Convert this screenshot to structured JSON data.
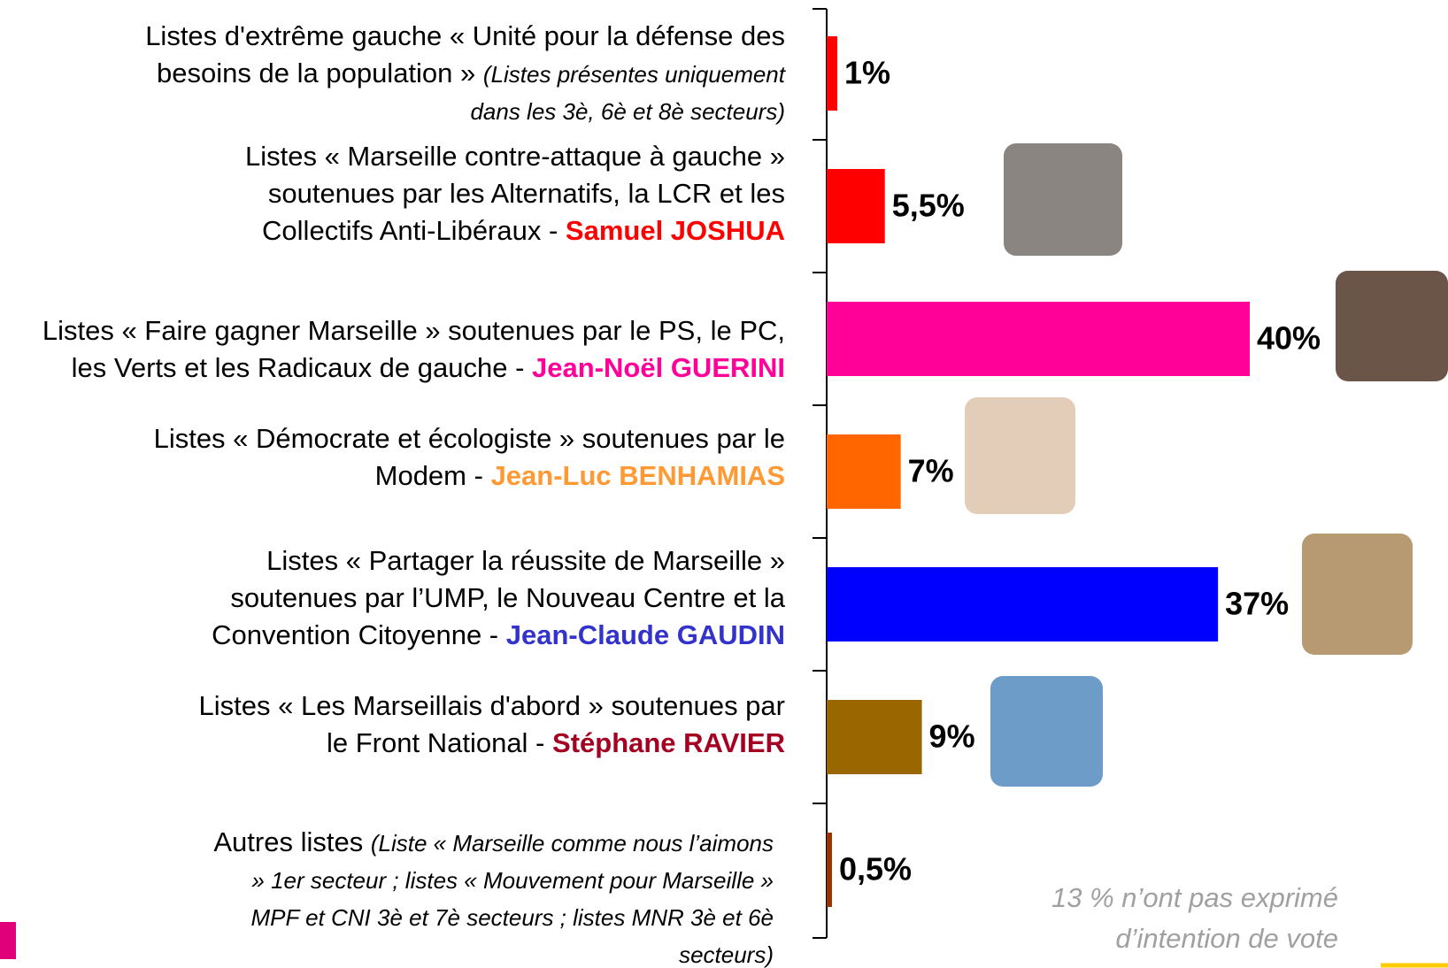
{
  "chart_data": {
    "type": "bar",
    "orientation": "horizontal",
    "categories": [
      "Listes d'extrême gauche « Unité pour la défense des besoins de la population »",
      "Listes « Marseille contre-attaque à gauche » soutenues par les Alternatifs, la LCR et les Collectifs Anti-Libéraux -",
      "Listes « Faire gagner Marseille » soutenues par le PS, le PC, les Verts et les Radicaux de gauche -",
      "Listes « Démocrate et écologiste » soutenues par le Modem -",
      "Listes « Partager la réussite de Marseille » soutenues par l’UMP, le Nouveau Centre et la Convention Citoyenne -",
      "Listes « Les Marseillais d'abord » soutenues par le Front National -",
      "Autres listes"
    ],
    "notes": [
      "(Listes présentes uniquement dans les 3è, 6è et 8è secteurs)",
      null,
      null,
      null,
      null,
      null,
      "(Liste « Marseille comme nous l’aimons » 1er secteur ; listes « Mouvement pour Marseille » MPF et CNI 3è et 7è secteurs ; listes MNR 3è et 6è secteurs)"
    ],
    "leaders": [
      null,
      "Samuel JOSHUA",
      "Jean-Noël GUERINI",
      "Jean-Luc BENHAMIAS",
      "Jean-Claude GAUDIN",
      "Stéphane RAVIER",
      null
    ],
    "leader_colors": [
      null,
      "#ff0000",
      "#ff0099",
      "#ff9933",
      "#3333cc",
      "#a50021",
      null
    ],
    "values": [
      1,
      5.5,
      40,
      7,
      37,
      9,
      0.5
    ],
    "value_labels": [
      "1%",
      "5,5%",
      "40%",
      "7%",
      "37%",
      "9%",
      "0,5%"
    ],
    "colors": [
      "#ff0000",
      "#ff0000",
      "#ff0099",
      "#ff6600",
      "#0000ff",
      "#996600",
      "#993300"
    ],
    "annotation": [
      "13 % n’ont pas exprimé",
      "d’intention de vote"
    ]
  }
}
